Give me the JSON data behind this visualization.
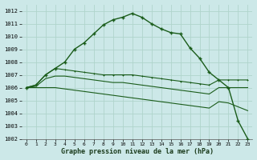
{
  "title": "Graphe pression niveau de la mer (hPa)",
  "bg_color": "#cce8e8",
  "grid_color": "#b0d4cc",
  "line_color": "#1a5c1a",
  "xlim": [
    -0.5,
    23.5
  ],
  "ylim": [
    1002,
    1012.5
  ],
  "xticks": [
    0,
    1,
    2,
    3,
    4,
    5,
    6,
    7,
    8,
    9,
    10,
    11,
    12,
    13,
    14,
    15,
    16,
    17,
    18,
    19,
    20,
    21,
    22,
    23
  ],
  "yticks": [
    1002,
    1003,
    1004,
    1005,
    1006,
    1007,
    1008,
    1009,
    1010,
    1011,
    1012
  ],
  "series1": [
    1006.0,
    1006.2,
    1007.0,
    1007.5,
    1008.0,
    1009.0,
    1009.5,
    1010.2,
    1010.9,
    1011.3,
    1011.5,
    1011.8,
    1011.5,
    1011.0,
    1010.6,
    1010.3,
    1010.2,
    1009.1,
    1008.3,
    1007.2,
    1006.6,
    1006.0,
    1003.4,
    1002.0
  ],
  "series2": [
    1006.0,
    1006.2,
    1007.0,
    1007.5,
    1007.4,
    1007.3,
    1007.2,
    1007.1,
    1007.0,
    1007.0,
    1007.0,
    1007.0,
    1006.9,
    1006.8,
    1006.7,
    1006.6,
    1006.5,
    1006.4,
    1006.3,
    1006.2,
    1006.6,
    1006.6,
    1006.6,
    1006.6
  ],
  "series3": [
    1006.0,
    1006.1,
    1006.7,
    1006.9,
    1006.9,
    1006.8,
    1006.7,
    1006.6,
    1006.5,
    1006.4,
    1006.4,
    1006.3,
    1006.2,
    1006.1,
    1006.0,
    1005.9,
    1005.8,
    1005.7,
    1005.6,
    1005.5,
    1006.0,
    1006.0,
    1006.0,
    1006.0
  ],
  "series4": [
    1006.0,
    1006.0,
    1006.0,
    1006.0,
    1005.9,
    1005.8,
    1005.7,
    1005.6,
    1005.5,
    1005.4,
    1005.3,
    1005.2,
    1005.1,
    1005.0,
    1004.9,
    1004.8,
    1004.7,
    1004.6,
    1004.5,
    1004.4,
    1004.9,
    1004.8,
    1004.5,
    1004.2
  ]
}
